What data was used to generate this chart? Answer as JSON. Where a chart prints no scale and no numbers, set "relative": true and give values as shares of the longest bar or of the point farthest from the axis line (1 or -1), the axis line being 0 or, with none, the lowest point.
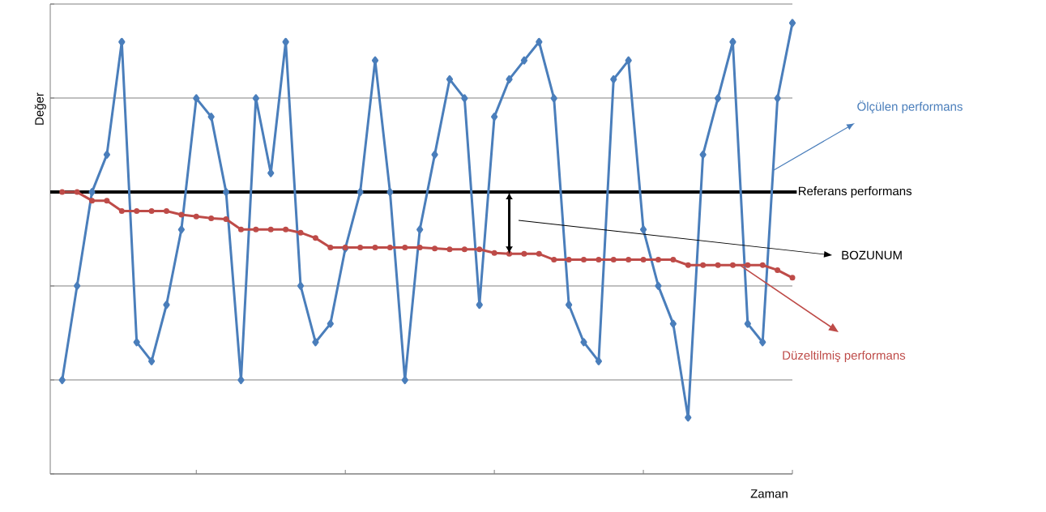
{
  "chart_data": {
    "type": "line",
    "relative": true,
    "xlabel": "Zaman",
    "ylabel": "Değer",
    "categories": [
      null,
      null,
      null,
      null,
      null,
      null,
      null,
      null,
      null,
      null,
      null,
      null,
      null,
      null,
      null,
      null,
      null,
      null,
      null,
      null,
      null,
      null,
      null,
      null,
      null,
      null,
      null,
      null,
      null,
      null,
      null,
      null,
      null,
      null,
      null,
      null,
      null,
      null,
      null,
      null,
      null,
      null,
      null,
      null,
      null,
      null,
      null,
      null,
      null,
      null
    ],
    "series": [
      {
        "name": "Ölçülen performans",
        "color": "#4a7ebb",
        "marker": "diamond",
        "values": [
          0.208,
          0.417,
          0.625,
          0.708,
          0.958,
          0.292,
          0.25,
          0.375,
          0.542,
          0.833,
          0.792,
          0.625,
          0.208,
          0.833,
          0.667,
          0.958,
          0.417,
          0.292,
          0.333,
          0.5,
          0.625,
          0.917,
          0.625,
          0.208,
          0.542,
          0.708,
          0.875,
          0.833,
          0.375,
          0.792,
          0.875,
          0.917,
          0.958,
          0.833,
          0.375,
          0.292,
          0.25,
          0.875,
          0.917,
          0.542,
          0.417,
          0.333,
          0.125,
          0.708,
          0.833,
          0.958,
          0.333,
          0.292,
          0.833,
          1
        ]
      },
      {
        "name": "Düzeltilmiş performans",
        "color": "#be4b48",
        "marker": "circle",
        "values": [
          0.625,
          0.625,
          0.606,
          0.606,
          0.583,
          0.583,
          0.583,
          0.583,
          0.575,
          0.571,
          0.567,
          0.565,
          0.542,
          0.542,
          0.542,
          0.542,
          0.535,
          0.523,
          0.502,
          0.502,
          0.502,
          0.502,
          0.502,
          0.502,
          0.502,
          0.5,
          0.498,
          0.498,
          0.498,
          0.49,
          0.488,
          0.488,
          0.488,
          0.475,
          0.475,
          0.475,
          0.475,
          0.475,
          0.475,
          0.475,
          0.475,
          0.475,
          0.463,
          0.463,
          0.463,
          0.463,
          0.463,
          0.463,
          0.452,
          0.435
        ]
      }
    ],
    "ref_lines": [
      {
        "axis": "y",
        "value": 0.625,
        "label": "Referans performans",
        "color": "#000000"
      }
    ],
    "annotations": [
      "BOZUNUM"
    ],
    "grid": "y",
    "tick_labels": false,
    "line_style": "solid"
  }
}
